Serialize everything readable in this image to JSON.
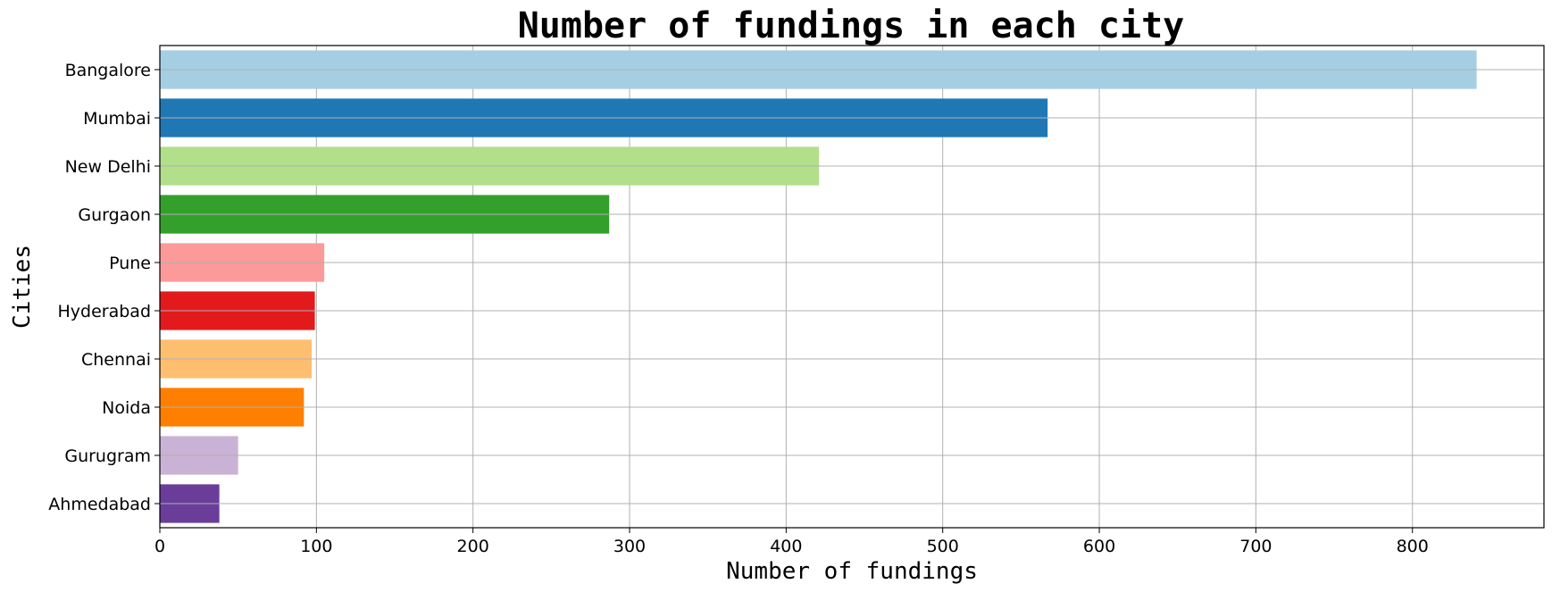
{
  "chart_data": {
    "type": "bar",
    "orientation": "horizontal",
    "title": "Number of fundings in each city",
    "xlabel": "Number of fundings",
    "ylabel": "Cities",
    "categories": [
      "Bangalore",
      "Mumbai",
      "New Delhi",
      "Gurgaon",
      "Pune",
      "Hyderabad",
      "Chennai",
      "Noida",
      "Gurugram",
      "Ahmedabad"
    ],
    "values": [
      841,
      567,
      421,
      287,
      105,
      99,
      97,
      92,
      50,
      38
    ],
    "colors": [
      "#a6cee3",
      "#1f78b4",
      "#b2df8a",
      "#33a02c",
      "#fb9a99",
      "#e31a1c",
      "#fdbf6f",
      "#ff7f00",
      "#cab2d6",
      "#6a3d9a"
    ],
    "xlim": [
      0,
      884
    ],
    "xticks": [
      0,
      100,
      200,
      300,
      400,
      500,
      600,
      700,
      800
    ],
    "grid": true
  }
}
